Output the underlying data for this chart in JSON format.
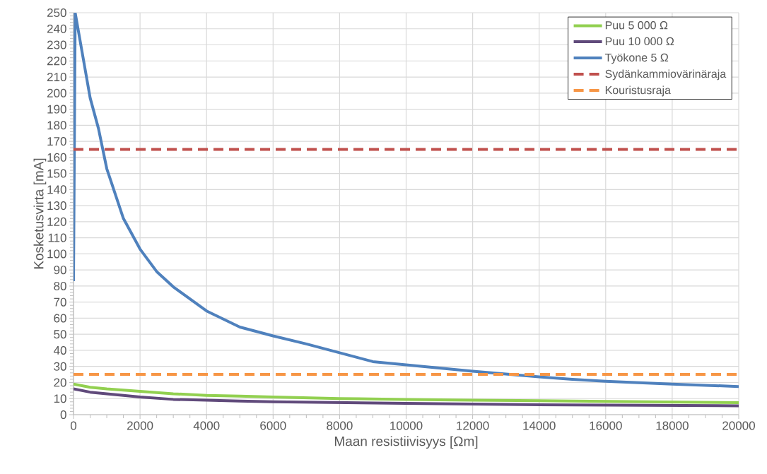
{
  "chart_data": {
    "type": "line",
    "xlabel": "Maan resistiivisyys [Ωm]",
    "ylabel": "Kosketusvirta [mA]",
    "xlim": [
      0,
      20000
    ],
    "ylim": [
      0,
      250
    ],
    "xticks": [
      0,
      2000,
      4000,
      6000,
      8000,
      10000,
      12000,
      14000,
      16000,
      18000,
      20000
    ],
    "yticks": [
      0,
      10,
      20,
      30,
      40,
      50,
      60,
      70,
      80,
      90,
      100,
      110,
      120,
      130,
      140,
      150,
      160,
      170,
      180,
      190,
      200,
      210,
      220,
      230,
      240,
      250
    ],
    "grid": true,
    "legend": "top right",
    "marker": "none",
    "line_style": "solid",
    "series": [
      {
        "name": "Puu 5 000 Ω",
        "color": "#92d050",
        "x": [
          0,
          500,
          1000,
          2000,
          3000,
          4000,
          5000,
          6000,
          8000,
          10000,
          12000,
          15000,
          20000
        ],
        "values": [
          19,
          17,
          16,
          14.5,
          13,
          12,
          11.5,
          11,
          10,
          9.5,
          9,
          8.5,
          7.5
        ]
      },
      {
        "name": "Puu 10 000 Ω",
        "color": "#604a7b",
        "x": [
          0,
          500,
          1000,
          2000,
          3000,
          4000,
          5000,
          6000,
          8000,
          10000,
          15000,
          20000
        ],
        "values": [
          16,
          14,
          13,
          11,
          9.5,
          9,
          8.5,
          8,
          7.5,
          7,
          6,
          5.5
        ]
      },
      {
        "name": "Työkone 5 Ω",
        "color": "#4f81bd",
        "x": [
          0,
          50,
          500,
          750,
          1000,
          1500,
          2000,
          2500,
          3000,
          4000,
          5000,
          6000,
          7000,
          8000,
          9000,
          10000,
          12000,
          14000,
          15000,
          16000,
          18000,
          20000
        ],
        "values": [
          83,
          250,
          197,
          178,
          153,
          122,
          103,
          89,
          79.5,
          64.5,
          54.5,
          49,
          44,
          38.5,
          33,
          31,
          27,
          23.5,
          22,
          20.8,
          19,
          17.5
        ]
      }
    ],
    "ref_lines": [
      {
        "axis": "y",
        "value": 165,
        "label": "Sydänkammiovärinäraja",
        "color": "#c0504d",
        "line_style": "dashed"
      },
      {
        "axis": "y",
        "value": 25,
        "label": "Kouristusraja",
        "color": "#f79646",
        "line_style": "dashed"
      }
    ]
  }
}
